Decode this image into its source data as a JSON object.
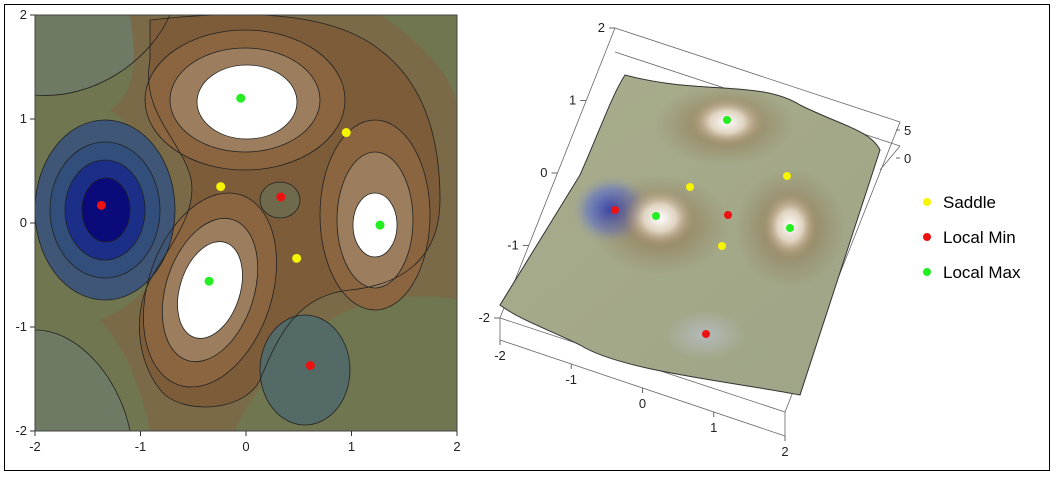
{
  "chart_data": [
    {
      "type": "contour",
      "xlim": [
        -2,
        2
      ],
      "ylim": [
        -2,
        2
      ],
      "x_ticks": [
        "-2",
        "-1",
        "0",
        "1",
        "2"
      ],
      "y_ticks": [
        "2",
        "1",
        "0",
        "-1",
        "-2"
      ],
      "points": [
        {
          "kind": "Saddle",
          "x": 0.95,
          "y": 0.87
        },
        {
          "kind": "Saddle",
          "x": -0.24,
          "y": 0.35
        },
        {
          "kind": "Saddle",
          "x": 0.48,
          "y": -0.34
        },
        {
          "kind": "Local Min",
          "x": -1.37,
          "y": 0.17
        },
        {
          "kind": "Local Min",
          "x": 0.33,
          "y": 0.25
        },
        {
          "kind": "Local Min",
          "x": 0.61,
          "y": -1.37
        },
        {
          "kind": "Local Max",
          "x": -0.05,
          "y": 1.2
        },
        {
          "kind": "Local Max",
          "x": 1.27,
          "y": -0.02
        },
        {
          "kind": "Local Max",
          "x": -0.35,
          "y": -0.56
        }
      ]
    },
    {
      "type": "surface3d",
      "x_ticks": [
        "-2",
        "-1",
        "0",
        "1",
        "2"
      ],
      "y_ticks": [
        "2",
        "1",
        "0",
        "-1",
        "-2"
      ],
      "z_ticks": [
        "5",
        "0"
      ]
    }
  ],
  "legend": {
    "position": "right",
    "items": [
      {
        "label": "Saddle",
        "color": "#f5f500"
      },
      {
        "label": "Local Min",
        "color": "#ee1111"
      },
      {
        "label": "Local Max",
        "color": "#22ee22"
      }
    ]
  },
  "colors": {
    "low": "#0a0a78",
    "mid": "#7d5a34",
    "high": "#ffffff",
    "border": "#6f7650"
  }
}
